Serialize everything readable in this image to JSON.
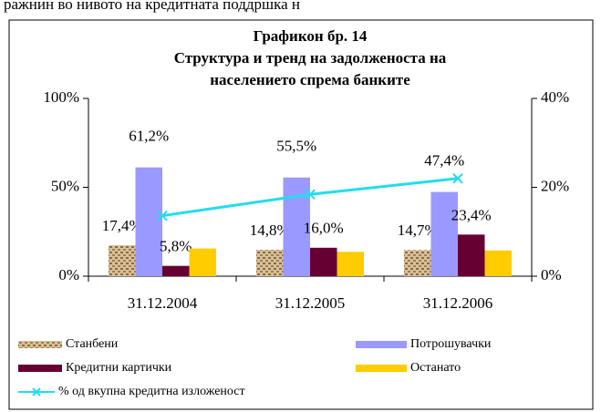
{
  "header_text": "ражнин во нивото на кредитната поддршка н",
  "chart_data": {
    "type": "bar",
    "title": "Графикон бр. 14",
    "subtitle": [
      "Структура и тренд на задолженоста на",
      "населението спрема банките"
    ],
    "categories": [
      "31.12.2004",
      "31.12.2005",
      "31.12.2006"
    ],
    "series": [
      {
        "name": "Станбени",
        "color": "#bfa070",
        "values": [
          17.4,
          14.8,
          14.7
        ],
        "value_labels": [
          "17,4%",
          "14,8%",
          "14,7%"
        ]
      },
      {
        "name": "Потрошувачки",
        "color": "#9999ff",
        "values": [
          61.2,
          55.5,
          47.4
        ],
        "value_labels": [
          "61,2%",
          "55,5%",
          "47,4%"
        ]
      },
      {
        "name": "Кредитни картички",
        "color": "#660033",
        "values": [
          5.8,
          16.0,
          23.4
        ],
        "value_labels": [
          "5,8%",
          "16,0%",
          "23,4%"
        ]
      },
      {
        "name": "Останато",
        "color": "#ffcc00",
        "values": [
          15.6,
          13.7,
          14.5
        ]
      },
      {
        "name": "% од вкупна кредитна изложеност",
        "color": "#22ddee",
        "type": "line",
        "axis": "y2",
        "values": [
          13.6,
          18.4,
          22.0
        ]
      }
    ],
    "ylim": [
      0,
      100
    ],
    "yticks": [
      {
        "value": 0,
        "label": "0%"
      },
      {
        "value": 50,
        "label": "50%"
      },
      {
        "value": 100,
        "label": "100%"
      }
    ],
    "y2lim": [
      0,
      40
    ],
    "y2ticks": [
      {
        "value": 0,
        "label": "0%"
      },
      {
        "value": 20,
        "label": "20%"
      },
      {
        "value": 40,
        "label": "40%"
      }
    ],
    "legend": "bottom"
  }
}
